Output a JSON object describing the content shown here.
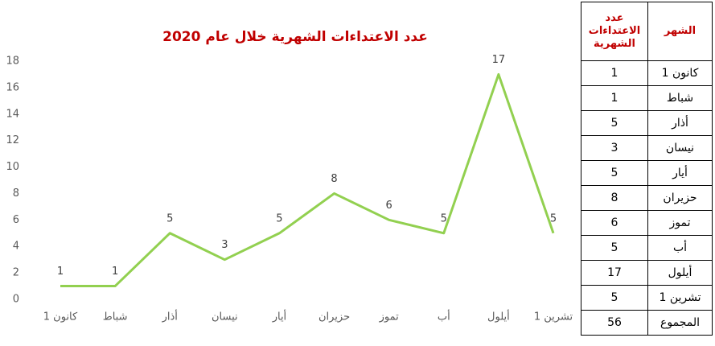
{
  "chart_data": {
    "type": "line",
    "title": "عدد الاعتداءات الشهرية خلال عام 2020",
    "categories": [
      "كانون 1",
      "شباط",
      "أذار",
      "نيسان",
      "أيار",
      "حزيران",
      "تموز",
      "أب",
      "أيلول",
      "تشرين 1"
    ],
    "series": [
      {
        "name": "عدد الاعتداءات الشهرية",
        "color": "#92d050",
        "values": [
          1,
          1,
          5,
          3,
          5,
          8,
          6,
          5,
          17,
          5
        ]
      }
    ],
    "ylim": [
      0,
      18
    ],
    "yticks": [
      0,
      2,
      4,
      6,
      8,
      10,
      12,
      14,
      16,
      18
    ],
    "grid": false,
    "data_labels": true
  },
  "table": {
    "headers": [
      "عدد الاعتداءات الشهرية",
      "الشهر"
    ],
    "rows": [
      [
        1,
        "كانون 1"
      ],
      [
        1,
        "شباط"
      ],
      [
        5,
        "أذار"
      ],
      [
        3,
        "نيسان"
      ],
      [
        5,
        "أيار"
      ],
      [
        8,
        "حزيران"
      ],
      [
        6,
        "تموز"
      ],
      [
        5,
        "أب"
      ],
      [
        17,
        "أيلول"
      ],
      [
        5,
        "تشرين 1"
      ],
      [
        56,
        "المجموع"
      ]
    ]
  }
}
